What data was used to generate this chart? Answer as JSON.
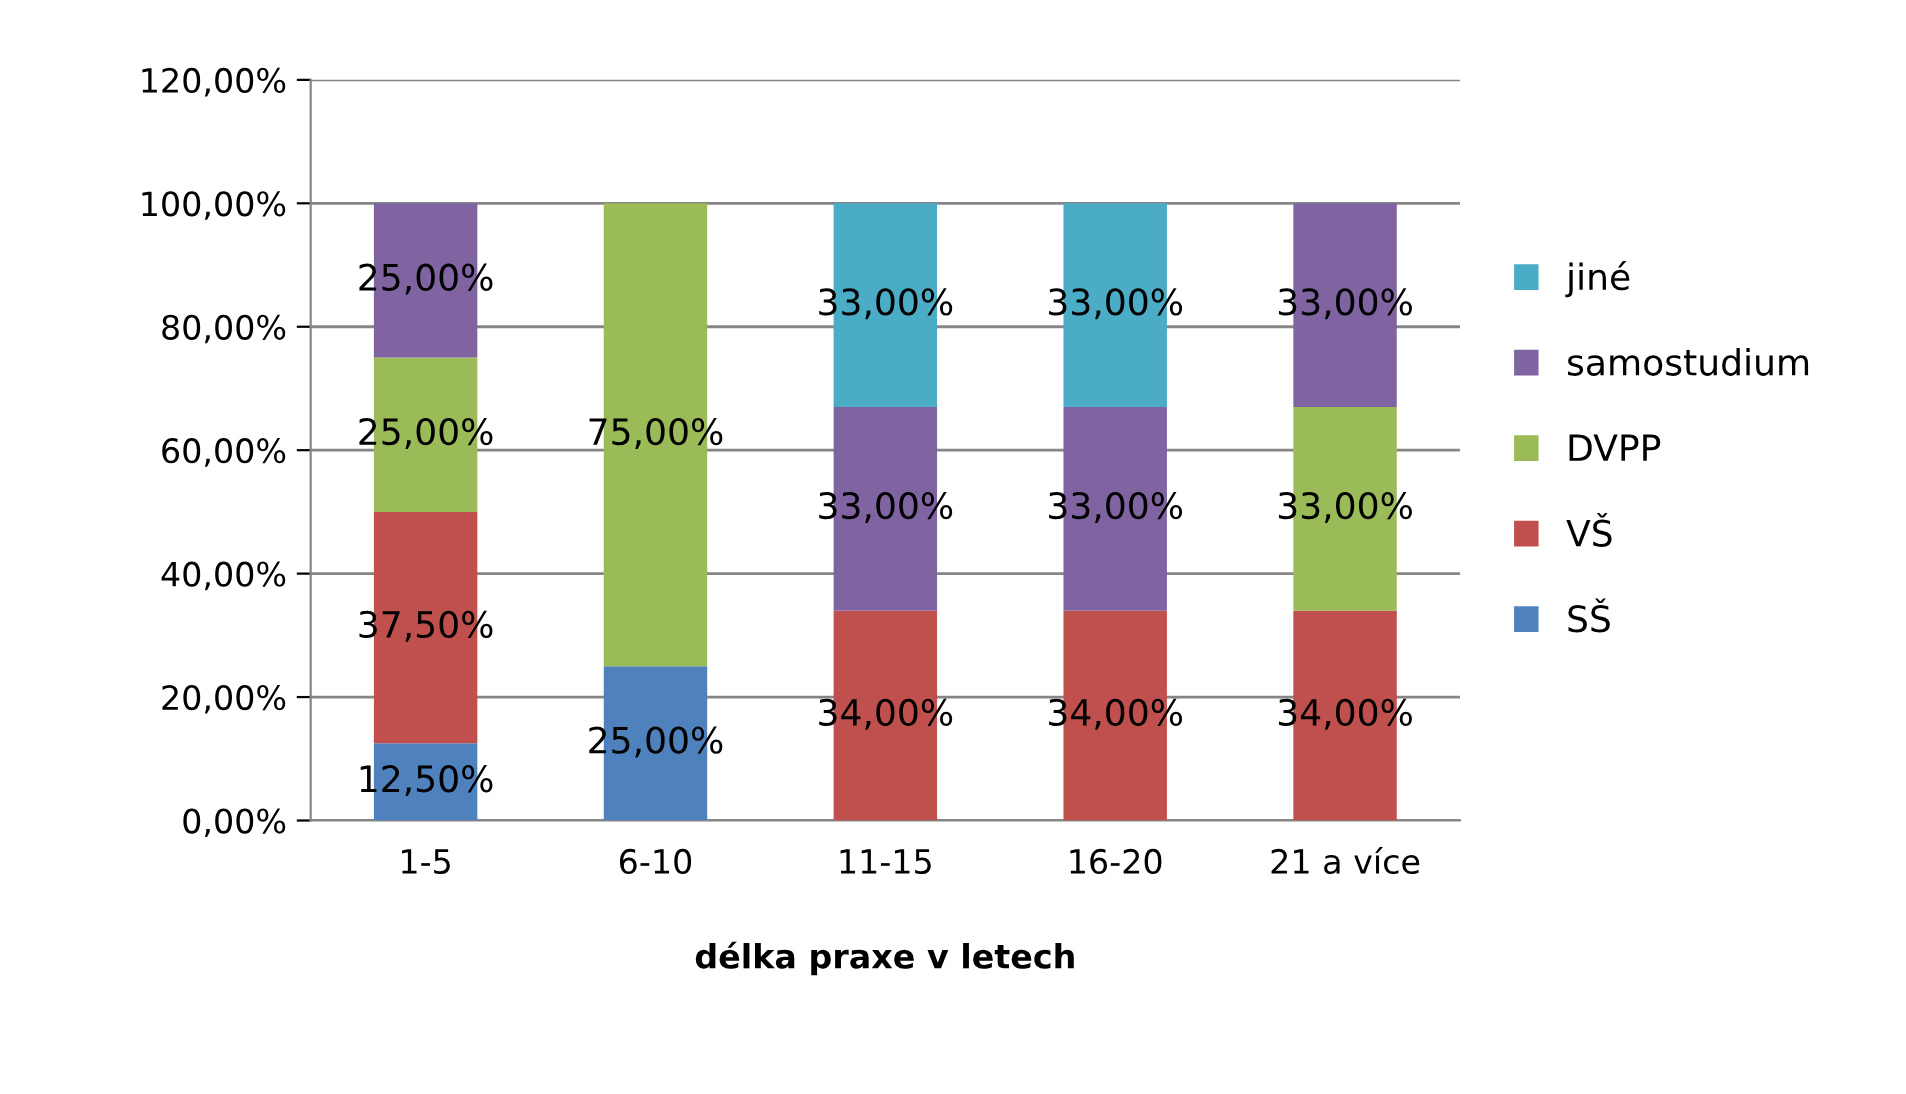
{
  "chart_data": {
    "type": "bar",
    "stacked": true,
    "xlabel": "délka praxe v letech",
    "categories": [
      "1-5",
      "6-10",
      "11-15",
      "16-20",
      "21 a více"
    ],
    "series": [
      {
        "name": "SŠ",
        "color": "#4f81bd",
        "values": [
          12.5,
          25,
          0,
          0,
          0
        ],
        "value_labels": [
          "12,50%",
          "25,00%",
          null,
          null,
          null
        ]
      },
      {
        "name": "VŠ",
        "color": "#c0504d",
        "values": [
          37.5,
          0,
          34,
          34,
          34
        ],
        "value_labels": [
          "37,50%",
          null,
          "34,00%",
          "34,00%",
          "34,00%"
        ]
      },
      {
        "name": "DVPP",
        "color": "#9bbb59",
        "values": [
          25,
          75,
          0,
          0,
          33
        ],
        "value_labels": [
          "25,00%",
          "75,00%",
          null,
          null,
          "33,00%"
        ]
      },
      {
        "name": "samostudium",
        "color": "#8064a2",
        "values": [
          25,
          0,
          33,
          33,
          33
        ],
        "value_labels": [
          "25,00%",
          null,
          "33,00%",
          "33,00%",
          "33,00%"
        ]
      },
      {
        "name": "jiné",
        "color": "#4bacc6",
        "values": [
          0,
          0,
          33,
          33,
          0
        ],
        "value_labels": [
          null,
          null,
          "33,00%",
          "33,00%",
          null
        ]
      }
    ],
    "ylim": [
      0,
      120
    ],
    "yticks": [
      {
        "value": 0,
        "label": "0,00%"
      },
      {
        "value": 20,
        "label": "20,00%"
      },
      {
        "value": 40,
        "label": "40,00%"
      },
      {
        "value": 60,
        "label": "60,00%"
      },
      {
        "value": 80,
        "label": "80,00%"
      },
      {
        "value": 100,
        "label": "100,00%"
      },
      {
        "value": 120,
        "label": "120,00%"
      }
    ],
    "grid": "y",
    "legend": "right"
  }
}
